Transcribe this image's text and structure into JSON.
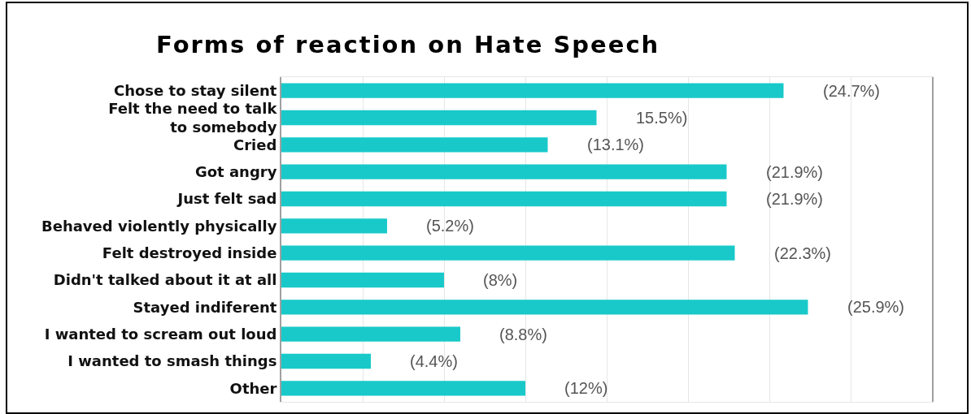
{
  "chart_data": {
    "type": "bar",
    "orientation": "horizontal",
    "title": "Forms of reaction on Hate Speech",
    "categories": [
      "Chose to stay silent",
      "Felt the need to talk\nto somebody",
      "Cried",
      "Got angry",
      "Just felt sad",
      "Behaved violently physically",
      "Felt destroyed inside",
      "Didn't talked about it at all",
      "Stayed indiferent",
      "I wanted to scream out loud",
      "I wanted to smash things",
      "Other"
    ],
    "values": [
      24.7,
      15.5,
      13.1,
      21.9,
      21.9,
      5.2,
      22.3,
      8,
      25.9,
      8.8,
      4.4,
      12
    ],
    "value_labels": [
      "(24.7%)",
      "15.5%)",
      "(13.1%)",
      "(21.9%)",
      "(21.9%)",
      "(5.2%)",
      "(22.3%)",
      "(8%)",
      "(25.9%)",
      "(8.8%)",
      "(4.4%)",
      "(12%)"
    ],
    "color": "#19c9c9",
    "xlim": [
      0,
      32
    ],
    "xticks": [
      0,
      4,
      8,
      12,
      16,
      20,
      24,
      28
    ],
    "grid": "x",
    "tick_labels": "y"
  }
}
